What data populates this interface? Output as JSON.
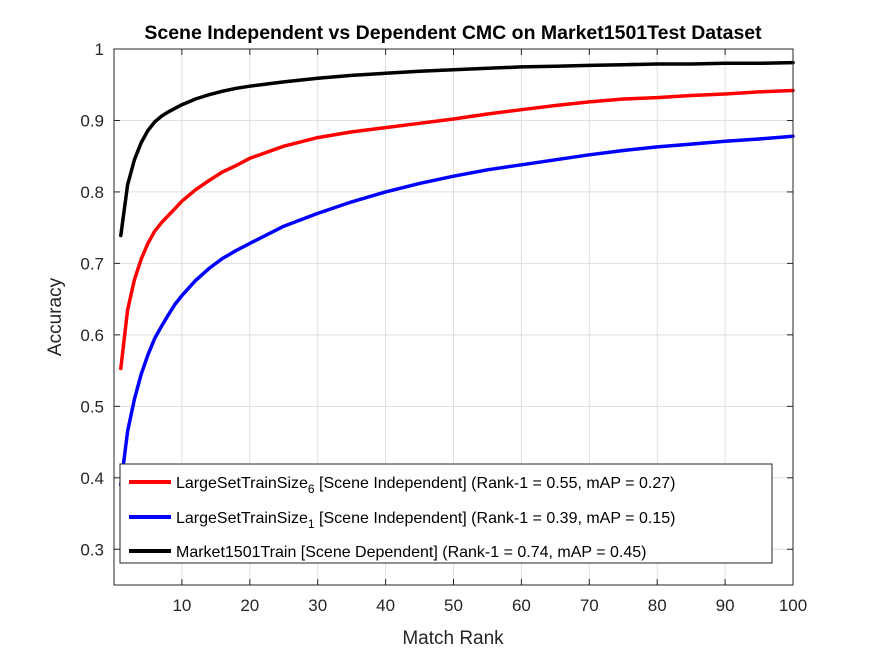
{
  "chart_data": {
    "type": "line",
    "title": "Scene Independent vs Dependent CMC on Market1501Test Dataset",
    "xlabel": "Match Rank",
    "ylabel": "Accuracy",
    "xlim": [
      0,
      100
    ],
    "ylim": [
      0.25,
      1
    ],
    "xticks": [
      10,
      20,
      30,
      40,
      50,
      60,
      70,
      80,
      90,
      100
    ],
    "yticks": [
      0.3,
      0.4,
      0.5,
      0.6,
      0.7,
      0.8,
      0.9,
      1
    ],
    "ytick_labels": [
      "0.3",
      "0.4",
      "0.5",
      "0.6",
      "0.7",
      "0.8",
      "0.9",
      "1"
    ],
    "grid": true,
    "legend_location": "bottom",
    "x": [
      1,
      2,
      3,
      4,
      5,
      6,
      7,
      8,
      9,
      10,
      12,
      14,
      16,
      18,
      20,
      25,
      30,
      35,
      40,
      45,
      50,
      55,
      60,
      65,
      70,
      75,
      80,
      85,
      90,
      95,
      100
    ],
    "series": [
      {
        "name": "LargeSetTrainSize",
        "subscript": "6",
        "suffix": " [Scene Independent] (Rank-1 = 0.55, mAP = 0.27)",
        "color": "#ff0000",
        "values": [
          0.553,
          0.635,
          0.677,
          0.706,
          0.728,
          0.745,
          0.757,
          0.767,
          0.777,
          0.787,
          0.803,
          0.816,
          0.828,
          0.837,
          0.847,
          0.864,
          0.876,
          0.884,
          0.89,
          0.896,
          0.902,
          0.909,
          0.915,
          0.921,
          0.926,
          0.93,
          0.932,
          0.935,
          0.937,
          0.94,
          0.942
        ]
      },
      {
        "name": "LargeSetTrainSize",
        "subscript": "1",
        "suffix": " [Scene Independent] (Rank-1 = 0.39, mAP = 0.15)",
        "color": "#0000ff",
        "values": [
          0.39,
          0.465,
          0.51,
          0.545,
          0.572,
          0.595,
          0.612,
          0.628,
          0.643,
          0.655,
          0.676,
          0.693,
          0.707,
          0.718,
          0.728,
          0.752,
          0.77,
          0.786,
          0.8,
          0.812,
          0.822,
          0.831,
          0.838,
          0.845,
          0.852,
          0.858,
          0.863,
          0.867,
          0.871,
          0.874,
          0.878
        ]
      },
      {
        "name": "Market1501Train [Scene Dependent] (Rank-1 = 0.74, mAP = 0.45)",
        "subscript": "",
        "suffix": "",
        "color": "#000000",
        "values": [
          0.739,
          0.81,
          0.845,
          0.869,
          0.886,
          0.898,
          0.906,
          0.912,
          0.917,
          0.922,
          0.93,
          0.936,
          0.941,
          0.945,
          0.948,
          0.954,
          0.959,
          0.963,
          0.966,
          0.969,
          0.971,
          0.973,
          0.975,
          0.976,
          0.977,
          0.978,
          0.979,
          0.979,
          0.98,
          0.98,
          0.981
        ]
      }
    ]
  }
}
